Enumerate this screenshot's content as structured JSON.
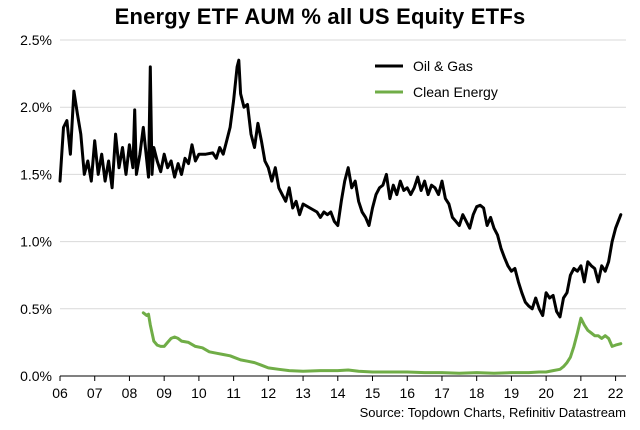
{
  "chart_data": {
    "type": "line",
    "title": "Energy ETF AUM % all US Equity ETFs",
    "xlabel": "",
    "ylabel": "",
    "x_tick_labels": [
      "06",
      "07",
      "08",
      "09",
      "10",
      "11",
      "12",
      "13",
      "14",
      "15",
      "16",
      "17",
      "18",
      "19",
      "20",
      "21",
      "22"
    ],
    "x_tick_values": [
      2006,
      2007,
      2008,
      2009,
      2010,
      2011,
      2012,
      2013,
      2014,
      2015,
      2016,
      2017,
      2018,
      2019,
      2020,
      2021,
      2022
    ],
    "xlim": [
      2006,
      2022.3
    ],
    "y_tick_labels": [
      "0.0%",
      "0.5%",
      "1.0%",
      "1.5%",
      "2.0%",
      "2.5%"
    ],
    "y_tick_values": [
      0.0,
      0.5,
      1.0,
      1.5,
      2.0,
      2.5
    ],
    "ylim": [
      0,
      2.5
    ],
    "grid": "horizontal",
    "legend_position": "top-right",
    "series": [
      {
        "name": "Oil & Gas",
        "color": "#000000",
        "points": [
          [
            2006.0,
            1.45
          ],
          [
            2006.1,
            1.85
          ],
          [
            2006.2,
            1.9
          ],
          [
            2006.3,
            1.65
          ],
          [
            2006.4,
            2.12
          ],
          [
            2006.5,
            1.95
          ],
          [
            2006.6,
            1.8
          ],
          [
            2006.7,
            1.5
          ],
          [
            2006.8,
            1.6
          ],
          [
            2006.9,
            1.45
          ],
          [
            2007.0,
            1.75
          ],
          [
            2007.1,
            1.5
          ],
          [
            2007.2,
            1.65
          ],
          [
            2007.3,
            1.45
          ],
          [
            2007.4,
            1.6
          ],
          [
            2007.5,
            1.4
          ],
          [
            2007.6,
            1.8
          ],
          [
            2007.7,
            1.55
          ],
          [
            2007.8,
            1.7
          ],
          [
            2007.9,
            1.5
          ],
          [
            2008.0,
            1.72
          ],
          [
            2008.1,
            1.55
          ],
          [
            2008.15,
            1.98
          ],
          [
            2008.2,
            1.5
          ],
          [
            2008.3,
            1.65
          ],
          [
            2008.4,
            1.85
          ],
          [
            2008.5,
            1.6
          ],
          [
            2008.55,
            1.48
          ],
          [
            2008.6,
            2.3
          ],
          [
            2008.65,
            1.5
          ],
          [
            2008.7,
            1.7
          ],
          [
            2008.8,
            1.6
          ],
          [
            2008.9,
            1.52
          ],
          [
            2009.0,
            1.65
          ],
          [
            2009.1,
            1.55
          ],
          [
            2009.2,
            1.6
          ],
          [
            2009.3,
            1.48
          ],
          [
            2009.4,
            1.58
          ],
          [
            2009.5,
            1.5
          ],
          [
            2009.6,
            1.62
          ],
          [
            2009.7,
            1.58
          ],
          [
            2009.8,
            1.72
          ],
          [
            2009.9,
            1.6
          ],
          [
            2010.0,
            1.65
          ],
          [
            2010.2,
            1.65
          ],
          [
            2010.4,
            1.66
          ],
          [
            2010.5,
            1.62
          ],
          [
            2010.6,
            1.7
          ],
          [
            2010.7,
            1.65
          ],
          [
            2010.8,
            1.75
          ],
          [
            2010.9,
            1.85
          ],
          [
            2011.0,
            2.05
          ],
          [
            2011.1,
            2.3
          ],
          [
            2011.15,
            2.35
          ],
          [
            2011.2,
            2.1
          ],
          [
            2011.3,
            2.0
          ],
          [
            2011.4,
            2.02
          ],
          [
            2011.5,
            1.8
          ],
          [
            2011.6,
            1.7
          ],
          [
            2011.7,
            1.88
          ],
          [
            2011.8,
            1.75
          ],
          [
            2011.9,
            1.6
          ],
          [
            2012.0,
            1.55
          ],
          [
            2012.1,
            1.45
          ],
          [
            2012.2,
            1.55
          ],
          [
            2012.3,
            1.4
          ],
          [
            2012.4,
            1.35
          ],
          [
            2012.5,
            1.3
          ],
          [
            2012.6,
            1.4
          ],
          [
            2012.7,
            1.25
          ],
          [
            2012.8,
            1.3
          ],
          [
            2012.9,
            1.2
          ],
          [
            2013.0,
            1.28
          ],
          [
            2013.2,
            1.25
          ],
          [
            2013.4,
            1.22
          ],
          [
            2013.5,
            1.18
          ],
          [
            2013.6,
            1.22
          ],
          [
            2013.7,
            1.2
          ],
          [
            2013.8,
            1.22
          ],
          [
            2013.9,
            1.15
          ],
          [
            2014.0,
            1.12
          ],
          [
            2014.1,
            1.3
          ],
          [
            2014.2,
            1.45
          ],
          [
            2014.3,
            1.55
          ],
          [
            2014.4,
            1.4
          ],
          [
            2014.5,
            1.45
          ],
          [
            2014.6,
            1.3
          ],
          [
            2014.7,
            1.22
          ],
          [
            2014.8,
            1.18
          ],
          [
            2014.9,
            1.12
          ],
          [
            2015.0,
            1.25
          ],
          [
            2015.1,
            1.35
          ],
          [
            2015.2,
            1.4
          ],
          [
            2015.3,
            1.42
          ],
          [
            2015.4,
            1.5
          ],
          [
            2015.5,
            1.32
          ],
          [
            2015.6,
            1.42
          ],
          [
            2015.7,
            1.35
          ],
          [
            2015.8,
            1.45
          ],
          [
            2015.9,
            1.38
          ],
          [
            2016.0,
            1.4
          ],
          [
            2016.1,
            1.35
          ],
          [
            2016.2,
            1.4
          ],
          [
            2016.3,
            1.48
          ],
          [
            2016.4,
            1.38
          ],
          [
            2016.5,
            1.45
          ],
          [
            2016.6,
            1.35
          ],
          [
            2016.7,
            1.42
          ],
          [
            2016.8,
            1.4
          ],
          [
            2016.9,
            1.35
          ],
          [
            2017.0,
            1.45
          ],
          [
            2017.1,
            1.32
          ],
          [
            2017.2,
            1.28
          ],
          [
            2017.3,
            1.18
          ],
          [
            2017.4,
            1.15
          ],
          [
            2017.5,
            1.12
          ],
          [
            2017.6,
            1.2
          ],
          [
            2017.7,
            1.15
          ],
          [
            2017.8,
            1.1
          ],
          [
            2017.9,
            1.2
          ],
          [
            2018.0,
            1.26
          ],
          [
            2018.1,
            1.27
          ],
          [
            2018.2,
            1.25
          ],
          [
            2018.3,
            1.12
          ],
          [
            2018.4,
            1.18
          ],
          [
            2018.5,
            1.1
          ],
          [
            2018.6,
            1.05
          ],
          [
            2018.7,
            0.95
          ],
          [
            2018.8,
            0.88
          ],
          [
            2018.9,
            0.82
          ],
          [
            2019.0,
            0.78
          ],
          [
            2019.1,
            0.8
          ],
          [
            2019.2,
            0.7
          ],
          [
            2019.3,
            0.62
          ],
          [
            2019.4,
            0.55
          ],
          [
            2019.5,
            0.52
          ],
          [
            2019.6,
            0.5
          ],
          [
            2019.7,
            0.58
          ],
          [
            2019.8,
            0.5
          ],
          [
            2019.9,
            0.45
          ],
          [
            2020.0,
            0.62
          ],
          [
            2020.1,
            0.58
          ],
          [
            2020.2,
            0.6
          ],
          [
            2020.3,
            0.48
          ],
          [
            2020.4,
            0.44
          ],
          [
            2020.5,
            0.58
          ],
          [
            2020.6,
            0.62
          ],
          [
            2020.7,
            0.75
          ],
          [
            2020.8,
            0.8
          ],
          [
            2020.9,
            0.78
          ],
          [
            2021.0,
            0.82
          ],
          [
            2021.1,
            0.7
          ],
          [
            2021.2,
            0.85
          ],
          [
            2021.3,
            0.82
          ],
          [
            2021.4,
            0.8
          ],
          [
            2021.5,
            0.7
          ],
          [
            2021.6,
            0.82
          ],
          [
            2021.7,
            0.78
          ],
          [
            2021.8,
            0.85
          ],
          [
            2021.9,
            1.0
          ],
          [
            2022.0,
            1.1
          ],
          [
            2022.15,
            1.2
          ]
        ]
      },
      {
        "name": "Clean Energy",
        "color": "#70ad47",
        "points": [
          [
            2008.4,
            0.47
          ],
          [
            2008.5,
            0.45
          ],
          [
            2008.55,
            0.46
          ],
          [
            2008.6,
            0.38
          ],
          [
            2008.7,
            0.26
          ],
          [
            2008.8,
            0.23
          ],
          [
            2008.9,
            0.22
          ],
          [
            2009.0,
            0.22
          ],
          [
            2009.1,
            0.25
          ],
          [
            2009.2,
            0.28
          ],
          [
            2009.3,
            0.29
          ],
          [
            2009.4,
            0.28
          ],
          [
            2009.5,
            0.26
          ],
          [
            2009.7,
            0.25
          ],
          [
            2009.9,
            0.22
          ],
          [
            2010.1,
            0.21
          ],
          [
            2010.3,
            0.18
          ],
          [
            2010.5,
            0.17
          ],
          [
            2010.7,
            0.16
          ],
          [
            2010.9,
            0.15
          ],
          [
            2011.0,
            0.14
          ],
          [
            2011.2,
            0.12
          ],
          [
            2011.4,
            0.11
          ],
          [
            2011.6,
            0.1
          ],
          [
            2011.8,
            0.08
          ],
          [
            2012.0,
            0.06
          ],
          [
            2012.3,
            0.05
          ],
          [
            2012.6,
            0.04
          ],
          [
            2013.0,
            0.035
          ],
          [
            2013.5,
            0.04
          ],
          [
            2014.0,
            0.04
          ],
          [
            2014.3,
            0.045
          ],
          [
            2014.6,
            0.035
          ],
          [
            2015.0,
            0.03
          ],
          [
            2015.5,
            0.03
          ],
          [
            2016.0,
            0.03
          ],
          [
            2016.5,
            0.025
          ],
          [
            2017.0,
            0.025
          ],
          [
            2017.5,
            0.02
          ],
          [
            2018.0,
            0.025
          ],
          [
            2018.5,
            0.02
          ],
          [
            2019.0,
            0.025
          ],
          [
            2019.5,
            0.025
          ],
          [
            2019.8,
            0.03
          ],
          [
            2020.0,
            0.03
          ],
          [
            2020.2,
            0.04
          ],
          [
            2020.4,
            0.05
          ],
          [
            2020.5,
            0.07
          ],
          [
            2020.6,
            0.1
          ],
          [
            2020.7,
            0.14
          ],
          [
            2020.8,
            0.22
          ],
          [
            2020.9,
            0.32
          ],
          [
            2021.0,
            0.43
          ],
          [
            2021.1,
            0.38
          ],
          [
            2021.2,
            0.34
          ],
          [
            2021.3,
            0.32
          ],
          [
            2021.4,
            0.3
          ],
          [
            2021.5,
            0.3
          ],
          [
            2021.6,
            0.28
          ],
          [
            2021.7,
            0.3
          ],
          [
            2021.8,
            0.28
          ],
          [
            2021.9,
            0.22
          ],
          [
            2022.0,
            0.23
          ],
          [
            2022.15,
            0.24
          ]
        ]
      }
    ],
    "source": "Source: Topdown Charts, Refinitiv Datastream"
  }
}
